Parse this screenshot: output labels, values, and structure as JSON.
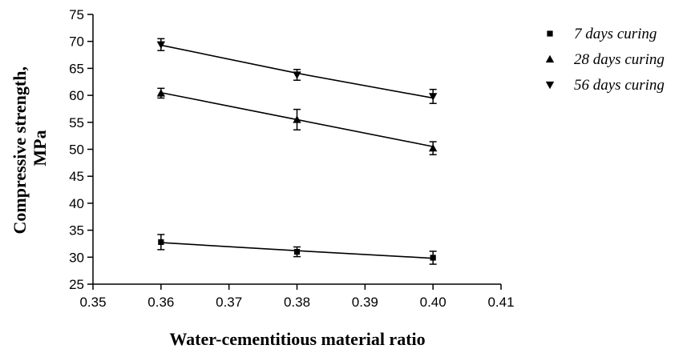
{
  "chart_data": {
    "type": "line",
    "xlabel": "Water-cementitious material ratio",
    "ylabel_lines": [
      "Compressive strength,",
      "MPa"
    ],
    "xlim": [
      0.35,
      0.41
    ],
    "ylim": [
      25,
      75
    ],
    "xticks": [
      "0.35",
      "0.36",
      "0.37",
      "0.38",
      "0.39",
      "0.40",
      "0.41"
    ],
    "yticks": [
      "25",
      "30",
      "35",
      "40",
      "45",
      "50",
      "55",
      "60",
      "65",
      "70",
      "75"
    ],
    "x": [
      0.36,
      0.38,
      0.4
    ],
    "grid": false,
    "legend_position": "top-right",
    "series": [
      {
        "name": "7 days curing",
        "marker": "square",
        "values": [
          32.8,
          31.0,
          29.9
        ],
        "errors": [
          1.4,
          0.9,
          1.2
        ],
        "fit": [
          32.7,
          31.2,
          29.8
        ]
      },
      {
        "name": "28 days curing",
        "marker": "triangle-up",
        "values": [
          60.4,
          55.5,
          50.2
        ],
        "errors": [
          0.9,
          1.9,
          1.2
        ],
        "fit": [
          60.5,
          55.5,
          50.5
        ]
      },
      {
        "name": "56 days curing",
        "marker": "triangle-down",
        "values": [
          69.4,
          63.8,
          59.8
        ],
        "errors": [
          1.1,
          1.0,
          1.3
        ],
        "fit": [
          69.3,
          64.1,
          59.5
        ]
      }
    ]
  }
}
